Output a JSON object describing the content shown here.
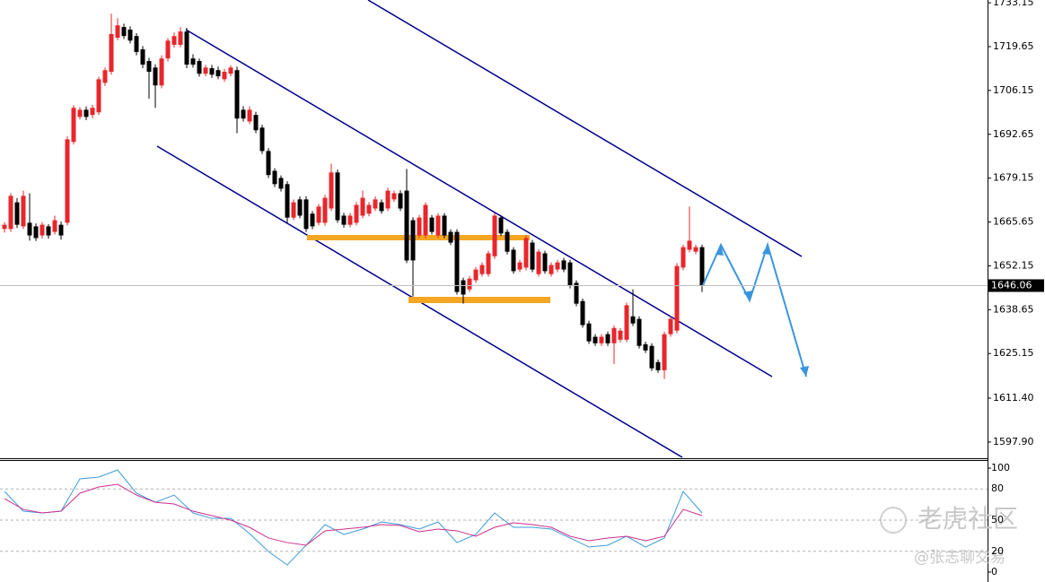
{
  "chart_data": [
    {
      "type": "candlestick",
      "up_color": "#e8262b",
      "down_color": "#000000",
      "ylim": [
        1592.9,
        1734.0
      ],
      "yticks": [
        1733.15,
        1719.65,
        1706.15,
        1692.65,
        1679.15,
        1665.65,
        1652.15,
        1638.65,
        1625.15,
        {
          "value": 1611.4,
          "label": "1611.40"
        },
        {
          "value": 1597.9,
          "label": "1597.90"
        }
      ],
      "current_price": 1646.06,
      "candles": [
        [
          1663.5,
          1665.6,
          1662.4,
          1664.8
        ],
        [
          1663.5,
          1674.5,
          1662.6,
          1673.7
        ],
        [
          1671.7,
          1673.0,
          1663.8,
          1664.8
        ],
        [
          1664.3,
          1675.3,
          1663.5,
          1673.7
        ],
        [
          1665.4,
          1674.5,
          1659.9,
          1661.5
        ],
        [
          1664.3,
          1665.2,
          1659.8,
          1660.7
        ],
        [
          1661.5,
          1665.6,
          1660.6,
          1664.8
        ],
        [
          1664.3,
          1665.0,
          1660.5,
          1661.5
        ],
        [
          1662.6,
          1667.6,
          1661.8,
          1666.2
        ],
        [
          1664.8,
          1665.8,
          1660.2,
          1661.5
        ],
        [
          1665.4,
          1692.0,
          1664.6,
          1691.1
        ],
        [
          1690.3,
          1701.6,
          1689.5,
          1700.8
        ],
        [
          1698.0,
          1701.0,
          1697.2,
          1700.2
        ],
        [
          1700.2,
          1701.2,
          1697.0,
          1698.0
        ],
        [
          1698.6,
          1701.7,
          1697.6,
          1700.8
        ],
        [
          1699.4,
          1710.4,
          1698.6,
          1709.6
        ],
        [
          1708.5,
          1713.2,
          1707.5,
          1712.4
        ],
        [
          1711.9,
          1729.8,
          1711.0,
          1723.5
        ],
        [
          1722.4,
          1728.4,
          1721.6,
          1726.2
        ],
        [
          1725.7,
          1726.7,
          1722.0,
          1722.9
        ],
        [
          1724.9,
          1725.9,
          1720.6,
          1721.5
        ],
        [
          1722.9,
          1723.8,
          1717.0,
          1718.0
        ],
        [
          1718.8,
          1719.8,
          1713.0,
          1714.1
        ],
        [
          1715.2,
          1716.2,
          1703.6,
          1711.9
        ],
        [
          1713.2,
          1714.2,
          1700.8,
          1707.7
        ],
        [
          1707.7,
          1717.0,
          1706.8,
          1716.0
        ],
        [
          1716.0,
          1722.3,
          1715.1,
          1721.5
        ],
        [
          1720.2,
          1724.0,
          1719.3,
          1722.9
        ],
        [
          1720.2,
          1725.6,
          1719.4,
          1724.3
        ],
        [
          1724.3,
          1725.4,
          1713.0,
          1714.1
        ],
        [
          1716.0,
          1717.3,
          1713.2,
          1714.1
        ],
        [
          1715.2,
          1716.0,
          1710.4,
          1711.3
        ],
        [
          1711.3,
          1714.0,
          1710.5,
          1713.2
        ],
        [
          1713.0,
          1714.0,
          1710.0,
          1711.0
        ],
        [
          1712.4,
          1713.5,
          1709.6,
          1710.5
        ],
        [
          1709.6,
          1712.8,
          1708.8,
          1711.9
        ],
        [
          1711.3,
          1713.9,
          1710.5,
          1713.2
        ],
        [
          1712.4,
          1713.5,
          1693.0,
          1697.5
        ],
        [
          1700.2,
          1701.3,
          1696.6,
          1697.5
        ],
        [
          1696.6,
          1701.2,
          1695.8,
          1700.2
        ],
        [
          1698.6,
          1699.6,
          1693.0,
          1693.9
        ],
        [
          1694.7,
          1695.6,
          1686.6,
          1687.5
        ],
        [
          1687.5,
          1688.4,
          1679.2,
          1680.1
        ],
        [
          1681.4,
          1682.2,
          1676.4,
          1677.3
        ],
        [
          1679.2,
          1680.0,
          1675.0,
          1675.9
        ],
        [
          1677.3,
          1678.2,
          1665.4,
          1667.0
        ],
        [
          1667.0,
          1672.6,
          1666.2,
          1671.7
        ],
        [
          1672.6,
          1673.5,
          1666.8,
          1667.6
        ],
        [
          1672.6,
          1673.6,
          1662.6,
          1663.5
        ],
        [
          1668.2,
          1669.0,
          1663.4,
          1664.3
        ],
        [
          1665.4,
          1671.2,
          1664.6,
          1670.4
        ],
        [
          1665.4,
          1674.0,
          1664.5,
          1673.1
        ],
        [
          1669.8,
          1683.6,
          1669.0,
          1680.9
        ],
        [
          1680.9,
          1681.8,
          1665.4,
          1666.2
        ],
        [
          1667.6,
          1668.5,
          1663.9,
          1664.8
        ],
        [
          1664.8,
          1668.4,
          1664.0,
          1667.6
        ],
        [
          1665.4,
          1671.8,
          1664.6,
          1670.9
        ],
        [
          1667.6,
          1675.3,
          1666.8,
          1673.1
        ],
        [
          1668.2,
          1671.8,
          1667.4,
          1670.9
        ],
        [
          1669.8,
          1673.5,
          1669.0,
          1672.6
        ],
        [
          1671.7,
          1672.6,
          1668.2,
          1669.0
        ],
        [
          1669.8,
          1676.2,
          1669.0,
          1675.3
        ],
        [
          1672.6,
          1675.3,
          1671.8,
          1674.5
        ],
        [
          1674.5,
          1675.4,
          1669.0,
          1669.8
        ],
        [
          1675.3,
          1682.0,
          1653.0,
          1653.8
        ],
        [
          1666.2,
          1667.1,
          1642.7,
          1653.8
        ],
        [
          1661.5,
          1667.8,
          1660.7,
          1667.0
        ],
        [
          1661.5,
          1671.7,
          1660.7,
          1670.9
        ],
        [
          1667.0,
          1667.8,
          1661.8,
          1662.6
        ],
        [
          1661.5,
          1668.4,
          1660.7,
          1667.6
        ],
        [
          1667.6,
          1668.4,
          1660.7,
          1661.5
        ],
        [
          1662.6,
          1663.4,
          1658.5,
          1659.3
        ],
        [
          1662.6,
          1663.4,
          1643.3,
          1644.1
        ],
        [
          1647.7,
          1648.5,
          1640.5,
          1643.3
        ],
        [
          1644.9,
          1649.0,
          1644.1,
          1648.2
        ],
        [
          1647.7,
          1651.8,
          1646.9,
          1651.0
        ],
        [
          1649.6,
          1653.2,
          1648.8,
          1652.4
        ],
        [
          1649.6,
          1656.8,
          1648.8,
          1656.0
        ],
        [
          1655.1,
          1668.4,
          1654.3,
          1667.6
        ],
        [
          1667.0,
          1667.8,
          1661.3,
          1662.1
        ],
        [
          1662.6,
          1663.4,
          1655.7,
          1656.5
        ],
        [
          1657.1,
          1657.9,
          1649.7,
          1650.5
        ],
        [
          1651.0,
          1654.0,
          1650.2,
          1653.2
        ],
        [
          1651.6,
          1661.5,
          1650.8,
          1660.7
        ],
        [
          1659.3,
          1660.1,
          1650.2,
          1651.0
        ],
        [
          1649.6,
          1657.3,
          1648.8,
          1656.5
        ],
        [
          1656.0,
          1656.8,
          1649.7,
          1650.5
        ],
        [
          1649.6,
          1653.2,
          1648.8,
          1652.4
        ],
        [
          1651.0,
          1654.0,
          1650.2,
          1653.2
        ],
        [
          1653.8,
          1654.6,
          1650.2,
          1651.0
        ],
        [
          1653.2,
          1654.0,
          1645.2,
          1646.0
        ],
        [
          1646.9,
          1647.7,
          1639.7,
          1640.5
        ],
        [
          1641.3,
          1642.1,
          1633.1,
          1633.9
        ],
        [
          1634.4,
          1635.2,
          1628.1,
          1628.9
        ],
        [
          1630.3,
          1631.1,
          1627.5,
          1628.3
        ],
        [
          1628.3,
          1631.1,
          1627.5,
          1630.3
        ],
        [
          1631.1,
          1631.9,
          1627.5,
          1628.3
        ],
        [
          1628.3,
          1633.8,
          1621.9,
          1633.0
        ],
        [
          1629.4,
          1633.0,
          1628.6,
          1632.2
        ],
        [
          1629.4,
          1640.8,
          1628.6,
          1640.0
        ],
        [
          1636.6,
          1644.9,
          1633.6,
          1634.4
        ],
        [
          1635.8,
          1636.6,
          1626.7,
          1627.5
        ],
        [
          1628.0,
          1628.8,
          1625.3,
          1626.1
        ],
        [
          1627.5,
          1628.3,
          1619.8,
          1620.6
        ],
        [
          1622.5,
          1623.3,
          1619.2,
          1620.0
        ],
        [
          1620.0,
          1631.9,
          1617.3,
          1631.1
        ],
        [
          1631.1,
          1636.6,
          1630.3,
          1635.8
        ],
        [
          1632.2,
          1653.0,
          1631.4,
          1652.1
        ],
        [
          1651.6,
          1658.7,
          1650.8,
          1657.9
        ],
        [
          1657.1,
          1670.4,
          1656.3,
          1659.9
        ],
        [
          1656.5,
          1658.7,
          1655.7,
          1657.9
        ],
        [
          1657.9,
          1658.7,
          1644.1,
          1646.0
        ]
      ]
    },
    {
      "type": "line",
      "ylim": [
        -9.5,
        107.8
      ],
      "yticks": [
        100,
        80,
        50,
        20,
        0
      ],
      "grid": true,
      "series": [
        {
          "color": "#3a9bd9",
          "values": [
            77.6,
            58.6,
            56.9,
            58.6,
            89.7,
            91.4,
            98.3,
            75.9,
            67.2,
            74.1,
            56.9,
            51.7,
            51.7,
            37.1,
            19.8,
            6.9,
            25.9,
            45.7,
            36.2,
            41.4,
            48.3,
            45.7,
            41.4,
            48.3,
            28.4,
            36.2,
            56.9,
            43.1,
            43.1,
            41.4,
            32.8,
            24.1,
            25.9,
            34.5,
            24.1,
            32.8,
            77.6,
            56.9
          ]
        },
        {
          "color": "#cc2f8f",
          "values": [
            70.7,
            60.3,
            56.9,
            58.6,
            75.9,
            81.9,
            84.5,
            74.1,
            67.2,
            65.5,
            58.6,
            54.3,
            50.0,
            43.1,
            32.8,
            28.4,
            25.9,
            39.7,
            41.4,
            43.1,
            45.7,
            44.8,
            38.8,
            41.4,
            39.7,
            34.5,
            43.1,
            47.4,
            45.7,
            43.1,
            34.5,
            30.2,
            32.8,
            34.5,
            30.2,
            34.5,
            60.3,
            54.3
          ]
        }
      ]
    }
  ],
  "watermark": {
    "brand": "老虎社区",
    "author": "@张志聊交易"
  }
}
